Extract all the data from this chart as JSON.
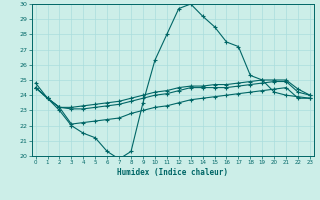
{
  "xlabel": "Humidex (Indice chaleur)",
  "background_color": "#cceee8",
  "line_color": "#006666",
  "grid_color": "#aadddd",
  "x": [
    0,
    1,
    2,
    3,
    4,
    5,
    6,
    7,
    8,
    9,
    10,
    11,
    12,
    13,
    14,
    15,
    16,
    17,
    18,
    19,
    20,
    21,
    22,
    23
  ],
  "line1": [
    24.8,
    23.8,
    23.0,
    22.0,
    21.5,
    21.2,
    20.3,
    19.8,
    20.3,
    23.5,
    26.3,
    28.0,
    29.7,
    30.0,
    29.2,
    28.5,
    27.5,
    27.2,
    25.3,
    25.0,
    24.2,
    24.0,
    23.9,
    23.8
  ],
  "line2": [
    24.5,
    23.8,
    23.2,
    23.1,
    23.1,
    23.2,
    23.3,
    23.4,
    23.6,
    23.8,
    24.0,
    24.1,
    24.3,
    24.5,
    24.5,
    24.5,
    24.5,
    24.6,
    24.7,
    24.8,
    24.9,
    24.9,
    24.2,
    24.0
  ],
  "line3": [
    24.5,
    23.8,
    23.2,
    23.2,
    23.3,
    23.4,
    23.5,
    23.6,
    23.8,
    24.0,
    24.2,
    24.3,
    24.5,
    24.6,
    24.6,
    24.7,
    24.7,
    24.8,
    24.9,
    25.0,
    25.0,
    25.0,
    24.4,
    24.0
  ],
  "line4": [
    24.5,
    23.8,
    23.2,
    22.1,
    22.2,
    22.3,
    22.4,
    22.5,
    22.8,
    23.0,
    23.2,
    23.3,
    23.5,
    23.7,
    23.8,
    23.9,
    24.0,
    24.1,
    24.2,
    24.3,
    24.4,
    24.5,
    23.8,
    23.8
  ],
  "ylim": [
    20,
    30
  ],
  "xlim": [
    -0.3,
    23.3
  ],
  "yticks": [
    20,
    21,
    22,
    23,
    24,
    25,
    26,
    27,
    28,
    29,
    30
  ],
  "xticks": [
    0,
    1,
    2,
    3,
    4,
    5,
    6,
    7,
    8,
    9,
    10,
    11,
    12,
    13,
    14,
    15,
    16,
    17,
    18,
    19,
    20,
    21,
    22,
    23
  ],
  "tick_fontsize": 4.0,
  "xlabel_fontsize": 5.5
}
